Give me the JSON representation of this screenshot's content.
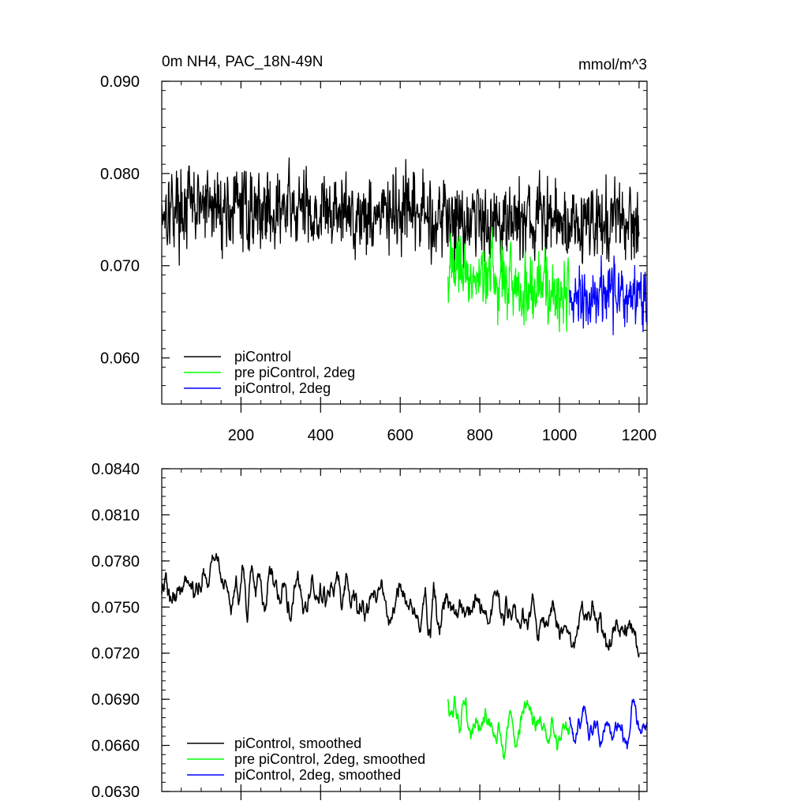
{
  "chart_data": [
    {
      "type": "line",
      "title_left": "0m NH4, PAC_18N-49N",
      "title_right": "mmol/m^3",
      "xlabel": "",
      "ylabel": "",
      "xlim": [
        1,
        1220
      ],
      "ylim": [
        0.055,
        0.09
      ],
      "x_ticks": [
        200,
        400,
        600,
        800,
        1000,
        1200
      ],
      "x_tick_labels": [
        "200",
        "400",
        "600",
        "800",
        "1000",
        "1200"
      ],
      "y_ticks": [
        0.06,
        0.07,
        0.08,
        0.09
      ],
      "y_tick_labels": [
        "0.060",
        "0.070",
        "0.080",
        "0.090"
      ],
      "legend_position": "bottom-left",
      "grid": false,
      "series": [
        {
          "name": "piControl",
          "color": "#000000",
          "x_start": 1,
          "x_end": 1200,
          "trend_start": 0.0765,
          "trend_end": 0.0745,
          "noise_amplitude": 0.0035,
          "range": [
            0.0665,
            0.088
          ]
        },
        {
          "name": "pre piControl, 2deg",
          "color": "#00ff00",
          "x_start": 720,
          "x_end": 1025,
          "trend_start": 0.07,
          "trend_end": 0.0665,
          "noise_amplitude": 0.003,
          "range": [
            0.0585,
            0.079
          ]
        },
        {
          "name": "piControl, 2deg",
          "color": "#0000ff",
          "x_start": 1025,
          "x_end": 1220,
          "trend_start": 0.0665,
          "trend_end": 0.067,
          "noise_amplitude": 0.0028,
          "range": [
            0.0603,
            0.0745
          ]
        }
      ]
    },
    {
      "type": "line",
      "xlabel": "",
      "ylabel": "",
      "xlim": [
        1,
        1220
      ],
      "ylim": [
        0.063,
        0.084
      ],
      "x_ticks": [
        200,
        400,
        600,
        800,
        1000,
        1200
      ],
      "y_ticks": [
        0.063,
        0.066,
        0.069,
        0.072,
        0.075,
        0.078,
        0.081,
        0.084
      ],
      "y_tick_labels": [
        "0.0630",
        "0.0660",
        "0.0690",
        "0.0720",
        "0.0750",
        "0.0780",
        "0.0810",
        "0.0840"
      ],
      "legend_position": "bottom-left",
      "grid": false,
      "series": [
        {
          "name": "piControl, smoothed",
          "color": "#000000",
          "x_start": 1,
          "x_end": 1200,
          "trend_start": 0.077,
          "trend_end": 0.0735,
          "noise_amplitude": 0.0012,
          "range": [
            0.07,
            0.082
          ]
        },
        {
          "name": "pre piControl, 2deg, smoothed",
          "color": "#00ff00",
          "x_start": 720,
          "x_end": 1025,
          "trend_start": 0.0685,
          "trend_end": 0.067,
          "noise_amplitude": 0.0012,
          "range": [
            0.0636,
            0.0727
          ]
        },
        {
          "name": "piControl, 2deg, smoothed",
          "color": "#0000ff",
          "x_start": 1025,
          "x_end": 1220,
          "trend_start": 0.067,
          "trend_end": 0.0675,
          "noise_amplitude": 0.0011,
          "range": [
            0.064,
            0.0705
          ]
        }
      ]
    }
  ]
}
